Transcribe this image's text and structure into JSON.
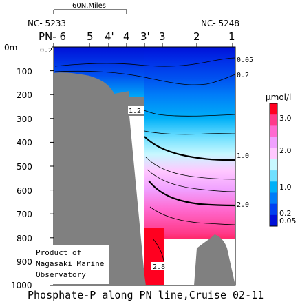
{
  "chart_data": {
    "type": "heatmap",
    "title": "Phosphate-P along PN line,Cruise 02-11",
    "credit": [
      "Product of",
      "Nagasaki Marine",
      "Observatory"
    ],
    "scale_bar": "60N.Miles",
    "ship_stations": [
      "NC- 5233",
      "NC- 5248"
    ],
    "stations": [
      "PN- 6",
      "5",
      "4'",
      "4",
      "3'",
      "3",
      "2",
      "1"
    ],
    "y_axis": {
      "ticks": [
        "0m",
        "100",
        "200",
        "300",
        "400",
        "500",
        "600",
        "700",
        "800",
        "900",
        "1000"
      ],
      "ylim": [
        0,
        1000
      ],
      "inverted": true
    },
    "colorbar": {
      "unit": "μmol/l",
      "labels": [
        "3.0",
        "2.0",
        "1.0",
        "0.2",
        "0.05"
      ],
      "levels": [
        3.0,
        2.0,
        1.0,
        0.2,
        0.05
      ],
      "colors": [
        "#ff0020",
        "#ff3a8a",
        "#ff6ad0",
        "#f0a0ff",
        "#ffc8ff",
        "#c8f8ff",
        "#70e0ff",
        "#00b0f8",
        "#007cf8",
        "#0040f0",
        "#0010d8"
      ]
    },
    "contour_labels": [
      "0.2",
      "1.2",
      "2.8",
      "0.05",
      "0.2",
      "1.0",
      "2.0"
    ]
  }
}
